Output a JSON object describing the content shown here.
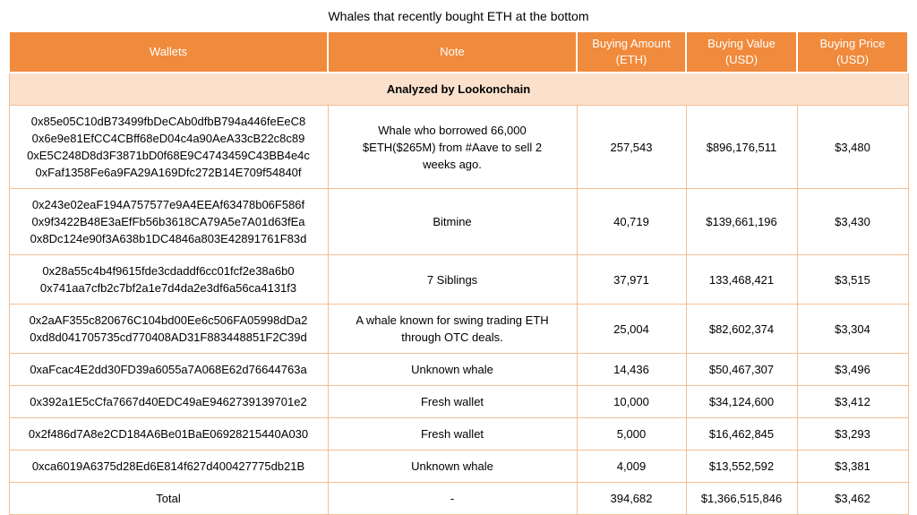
{
  "title": "Whales that recently bought ETH at the bottom",
  "banner": "Analyzed by Lookonchain",
  "colors": {
    "header_bg": "#F08A3C",
    "banner_bg": "#FBE0CB",
    "border": "#F4BE94",
    "header_text": "#FFFFFF"
  },
  "chart_data": {
    "type": "table",
    "title": "Whales that recently bought ETH at the bottom",
    "annotation": "Analyzed by Lookonchain",
    "columns": [
      {
        "label": "Wallets",
        "sub": ""
      },
      {
        "label": "Note",
        "sub": ""
      },
      {
        "label": "Buying Amount",
        "sub": "(ETH)"
      },
      {
        "label": "Buying Value",
        "sub": "(USD)"
      },
      {
        "label": "Buying Price",
        "sub": "(USD)"
      }
    ],
    "rows": [
      {
        "wallets": [
          "0x85e05C10dB73499fbDeCAb0dfbB794a446feEeC8",
          "0x6e9e81EfCC4CBff68eD04c4a90AeA33cB22c8c89",
          "0xE5C248D8d3F3871bD0f68E9C4743459C43BB4e4c",
          "0xFaf1358Fe6a9FA29A169Dfc272B14E709f54840f"
        ],
        "note": "Whale who borrowed 66,000 $ETH($265M) from #Aave to sell 2 weeks ago.",
        "amount": "257,543",
        "value": "$896,176,511",
        "price": "$3,480"
      },
      {
        "wallets": [
          "0x243e02eaF194A757577e9A4EEAf63478b06F586f",
          "0x9f3422B48E3aEfFb56b3618CA79A5e7A01d63fEa",
          "0x8Dc124e90f3A638b1DC4846a803E42891761F83d"
        ],
        "note": "Bitmine",
        "amount": "40,719",
        "value": "$139,661,196",
        "price": "$3,430"
      },
      {
        "wallets": [
          "0x28a55c4b4f9615fde3cdaddf6cc01fcf2e38a6b0",
          "0x741aa7cfb2c7bf2a1e7d4da2e3df6a56ca4131f3"
        ],
        "note": "7 Siblings",
        "amount": "37,971",
        "value": "133,468,421",
        "price": "$3,515"
      },
      {
        "wallets": [
          "0x2aAF355c820676C104bd00Ee6c506FA05998dDa2",
          "0xd8d041705735cd770408AD31F883448851F2C39d"
        ],
        "note": "A whale known for swing trading ETH through OTC deals.",
        "amount": "25,004",
        "value": "$82,602,374",
        "price": "$3,304"
      },
      {
        "wallets": [
          "0xaFcac4E2dd30FD39a6055a7A068E62d76644763a"
        ],
        "note": "Unknown whale",
        "amount": "14,436",
        "value": "$50,467,307",
        "price": "$3,496"
      },
      {
        "wallets": [
          "0x392a1E5cCfa7667d40EDC49aE9462739139701e2"
        ],
        "note": "Fresh wallet",
        "amount": "10,000",
        "value": "$34,124,600",
        "price": "$3,412"
      },
      {
        "wallets": [
          "0x2f486d7A8e2CD184A6Be01BaE06928215440A030"
        ],
        "note": "Fresh wallet",
        "amount": "5,000",
        "value": "$16,462,845",
        "price": "$3,293"
      },
      {
        "wallets": [
          "0xca6019A6375d28Ed6E814f627d400427775db21B"
        ],
        "note": "Unknown whale",
        "amount": "4,009",
        "value": "$13,552,592",
        "price": "$3,381"
      }
    ],
    "total": {
      "label": "Total",
      "note": "-",
      "amount": "394,682",
      "value": "$1,366,515,846",
      "price": "$3,462"
    }
  }
}
